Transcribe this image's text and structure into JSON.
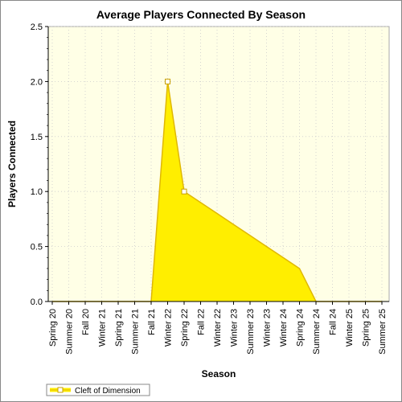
{
  "chart_data": {
    "type": "area",
    "title": "Average Players Connected By Season",
    "xlabel": "Season",
    "ylabel": "Players Connected",
    "ylim": [
      0,
      2.5
    ],
    "yticks": [
      0.0,
      0.5,
      1.0,
      1.5,
      2.0,
      2.5
    ],
    "ytick_labels": [
      "0.0",
      "0.5",
      "1.0",
      "1.5",
      "2.0",
      "2.5"
    ],
    "categories": [
      "Spring 20",
      "Summer 20",
      "Fall 20",
      "Winter 21",
      "Spring 21",
      "Summer 21",
      "Fall 21",
      "Winter 22",
      "Spring 22",
      "Fall 22",
      "Winter 22",
      "Winter 23",
      "Summer 23",
      "Winter 23",
      "Winter 24",
      "Spring 24",
      "Summer 24",
      "Fall 24",
      "Winter 25",
      "Spring 25",
      "Summer 25"
    ],
    "series": [
      {
        "name": "Cleft of Dimension",
        "values": [
          0,
          0,
          0,
          0,
          0,
          0,
          0,
          2.0,
          1.0,
          0.9,
          0.8,
          0.7,
          0.6,
          0.5,
          0.4,
          0.3,
          0,
          0,
          0,
          0,
          0
        ],
        "markers_at": [
          7,
          8
        ],
        "color": "#ffee00",
        "edge_color": "#e0b800"
      }
    ],
    "grid": true,
    "legend": "bottom-left"
  },
  "colors": {
    "plot_background": "#ffffe6",
    "grid": "#cccccc",
    "axis": "#000000",
    "area_fill": "#ffee00",
    "area_edge": "#e0b800",
    "marker_edge": "#c8a000"
  }
}
